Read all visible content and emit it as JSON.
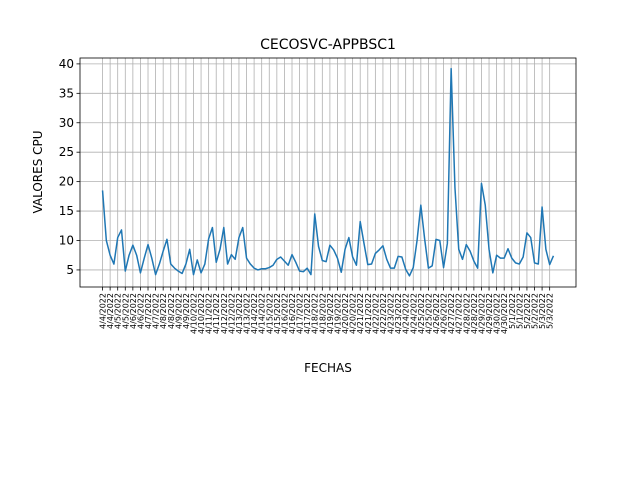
{
  "chart_data": {
    "type": "line",
    "title": "CECOSVC-APPBSC1",
    "xlabel": "FECHAS",
    "ylabel": "VALORES CPU",
    "categories": [
      "4/4/2022",
      null,
      "4/4/2022",
      null,
      "4/5/2022",
      null,
      "4/5/2022",
      null,
      "4/6/2022",
      null,
      "4/6/2022",
      null,
      "4/7/2022",
      null,
      "4/7/2022",
      null,
      "4/8/2022",
      null,
      "4/8/2022",
      null,
      "4/9/2022",
      null,
      "4/9/2022",
      null,
      "4/10/2022",
      null,
      "4/10/2022",
      null,
      "4/11/2022",
      null,
      "4/11/2022",
      null,
      "4/12/2022",
      null,
      "4/12/2022",
      null,
      "4/13/2022",
      null,
      "4/13/2022",
      null,
      "4/14/2022",
      null,
      "4/14/2022",
      null,
      "4/15/2022",
      null,
      "4/15/2022",
      null,
      "4/16/2022",
      null,
      "4/16/2022",
      null,
      "4/17/2022",
      null,
      "4/17/2022",
      null,
      "4/18/2022",
      null,
      "4/18/2022",
      null,
      "4/19/2022",
      null,
      "4/19/2022",
      null,
      "4/20/2022",
      null,
      "4/20/2022",
      null,
      "4/21/2022",
      null,
      "4/21/2022",
      null,
      "4/22/2022",
      null,
      "4/22/2022",
      null,
      "4/23/2022",
      null,
      "4/23/2022",
      null,
      "4/24/2022",
      null,
      "4/24/2022",
      null,
      "4/25/2022",
      null,
      "4/25/2022",
      null,
      "4/26/2022",
      null,
      "4/26/2022",
      null,
      "4/27/2022",
      null,
      "4/27/2022",
      null,
      "4/28/2022",
      null,
      "4/28/2022",
      null,
      "4/29/2022",
      null,
      "4/29/2022",
      null,
      "4/30/2022",
      null,
      "4/30/2022",
      null,
      "5/1/2022",
      null,
      "5/1/2022",
      null,
      "5/2/2022",
      null,
      "5/2/2022",
      null,
      "5/3/2022",
      null,
      "5/3/2022",
      null
    ],
    "values": [
      18.5,
      10,
      7.5,
      6,
      10.5,
      11.8,
      4.8,
      7.5,
      9.2,
      7.5,
      4.5,
      7,
      9.3,
      7,
      4.2,
      6,
      8.2,
      10.2,
      6,
      5.3,
      4.8,
      4.4,
      6,
      8.5,
      4.2,
      6.7,
      4.5,
      6,
      10.3,
      12.2,
      6.3,
      8.5,
      12.2,
      6,
      7.6,
      6.8,
      10.5,
      12.2,
      7,
      6,
      5.3,
      5,
      5.2,
      5.2,
      5.4,
      5.8,
      6.8,
      7.2,
      6.5,
      5.8,
      7.6,
      6.3,
      4.8,
      4.7,
      5.3,
      4.2,
      14.5,
      9,
      6.6,
      6.4,
      9.2,
      8.4,
      7,
      4.6,
      8.5,
      10.5,
      7.2,
      5.8,
      13.2,
      9.5,
      5.9,
      6,
      7.8,
      8.4,
      9.1,
      6.8,
      5.3,
      5.3,
      7.3,
      7.2,
      5.1,
      4,
      5.4,
      10,
      16,
      10.3,
      5.3,
      5.7,
      10.2,
      10,
      5.4,
      9.5,
      39.2,
      19,
      8.5,
      6.8,
      9.3,
      8.2,
      6.5,
      5.3,
      19.7,
      16,
      8.5,
      4.5,
      7.5,
      7,
      7,
      8.6,
      7,
      6.2,
      6,
      7.2,
      11.3,
      10.5,
      6.2,
      6,
      15.7,
      8.5,
      5.9,
      7.4
    ],
    "color": "#1f77b4",
    "ylim": [
      2.1,
      41
    ],
    "yticks": [
      5,
      10,
      15,
      20,
      25,
      30,
      35,
      40
    ],
    "grid": true
  }
}
